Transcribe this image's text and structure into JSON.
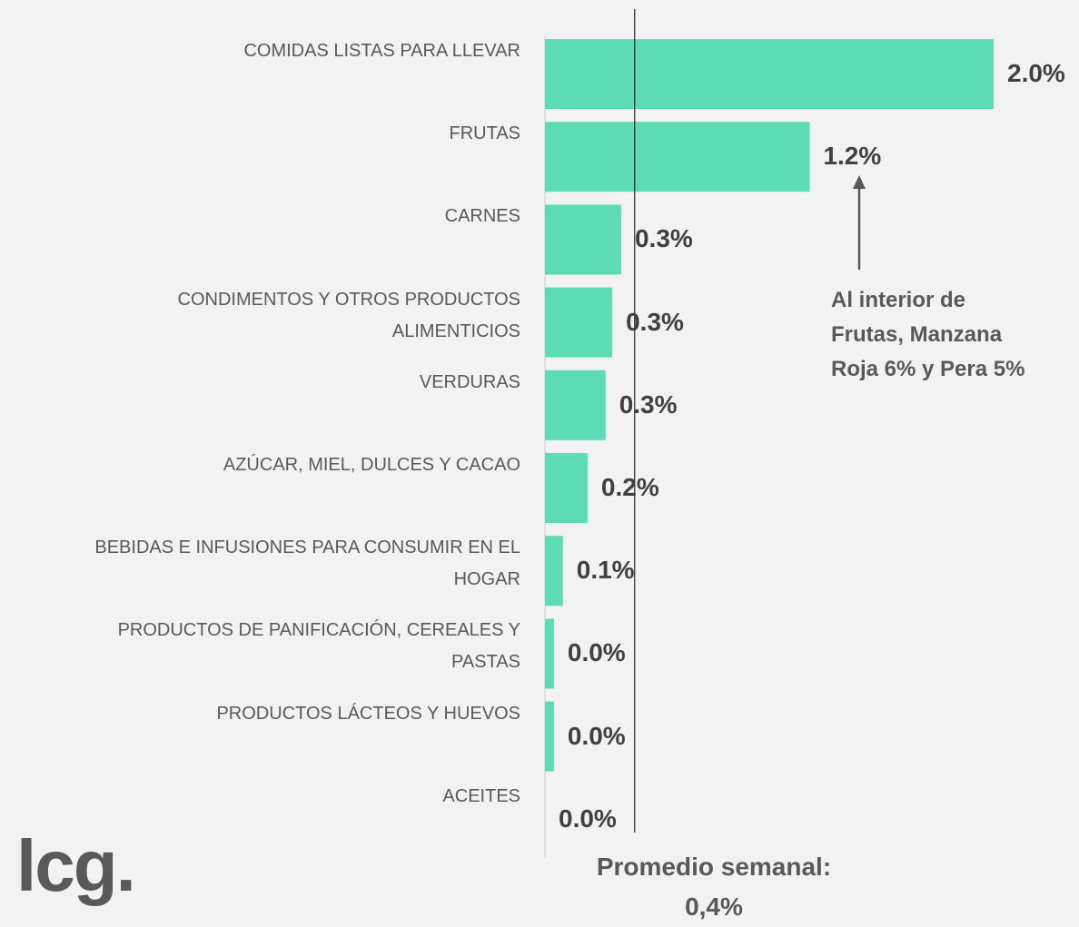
{
  "chart_data": {
    "type": "barh",
    "categories": [
      "COMIDAS LISTAS PARA LLEVAR",
      "FRUTAS",
      "CARNES",
      "CONDIMENTOS Y OTROS PRODUCTOS\nALIMENTICIOS",
      "VERDURAS",
      "AZÚCAR, MIEL, DULCES Y CACAO",
      "BEBIDAS E INFUSIONES PARA CONSUMIR EN EL\nHOGAR",
      "PRODUCTOS DE PANIFICACIÓN, CEREALES Y\nPASTAS",
      "PRODUCTOS LÁCTEOS Y HUEVOS",
      "ACEITES"
    ],
    "values": [
      2.0,
      1.18,
      0.34,
      0.3,
      0.27,
      0.19,
      0.08,
      0.04,
      0.04,
      0
    ],
    "value_labels": [
      "2.0%",
      "1.2%",
      "0.3%",
      "0.3%",
      "0.3%",
      "0.2%",
      "0.1%",
      "0.0%",
      "0.0%",
      "0.0%"
    ],
    "color": "#5ddbb4",
    "xlim": [
      0,
      2.0
    ],
    "reference_line": {
      "value": 0.4,
      "label": "Promedio semanal:\n0,4%"
    },
    "annotation": "Al interior de\nFrutas, Manzana\nRoja 6% y Pera 5%",
    "logo": "lcg."
  }
}
